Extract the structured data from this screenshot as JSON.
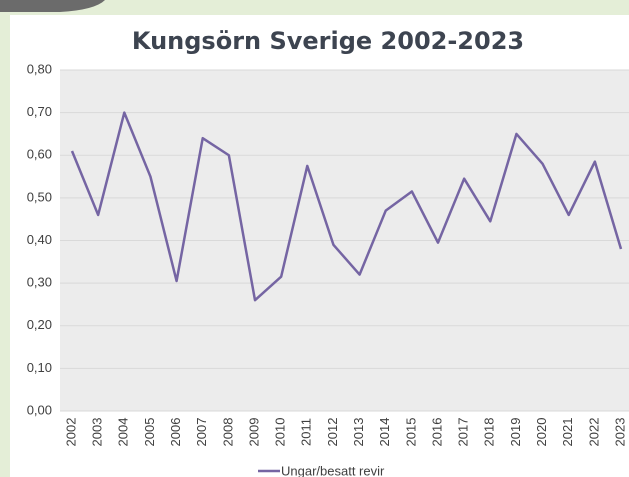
{
  "chart_data": {
    "type": "line",
    "title": "Kungsörn Sverige 2002-2023",
    "categories": [
      "2002",
      "2003",
      "2004",
      "2005",
      "2006",
      "2007",
      "2008",
      "2009",
      "2010",
      "2011",
      "2012",
      "2013",
      "2014",
      "2015",
      "2016",
      "2017",
      "2018",
      "2019",
      "2020",
      "2021",
      "2022",
      "2023"
    ],
    "series": [
      {
        "name": "Ungar/besatt revir",
        "color": "#7565a3",
        "values": [
          0.61,
          0.46,
          0.7,
          0.55,
          0.305,
          0.64,
          0.6,
          0.26,
          0.315,
          0.575,
          0.39,
          0.32,
          0.47,
          0.515,
          0.395,
          0.545,
          0.445,
          0.65,
          0.58,
          0.46,
          0.585,
          0.38
        ]
      }
    ],
    "ylim": [
      0,
      0.8
    ],
    "yticks": [
      {
        "value": 0,
        "label": "0,00"
      },
      {
        "value": 0.1,
        "label": "0,10"
      },
      {
        "value": 0.2,
        "label": "0,20"
      },
      {
        "value": 0.3,
        "label": "0,30"
      },
      {
        "value": 0.4,
        "label": "0,40"
      },
      {
        "value": 0.5,
        "label": "0,50"
      },
      {
        "value": 0.6,
        "label": "0,60"
      },
      {
        "value": 0.7,
        "label": "0,70"
      },
      {
        "value": 0.8,
        "label": "0,80"
      }
    ],
    "grid": true,
    "legend": "bottom"
  }
}
